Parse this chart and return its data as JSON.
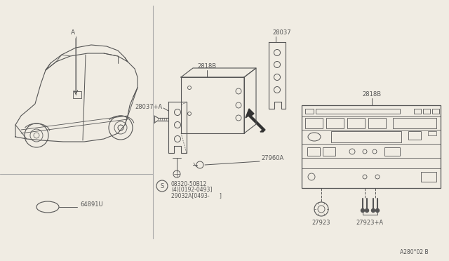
{
  "bg_color": "#f0ece3",
  "line_color": "#555555",
  "diagram_ref": "A280°02 B",
  "parts": {
    "car_label": "A",
    "part_64891U": "64891U",
    "part_28037": "28037",
    "part_2818B_mid": "2818B",
    "part_28037A": "28037+A",
    "part_27960A": "27960A",
    "part_screw_label": "08320-50B12",
    "part_screw_line2": "(4)[0192-0493]",
    "part_screw_line3": "29032A[0493-      ]",
    "part_2818B_right": "2818B",
    "part_27923": "27923",
    "part_27923A": "27923+A"
  }
}
